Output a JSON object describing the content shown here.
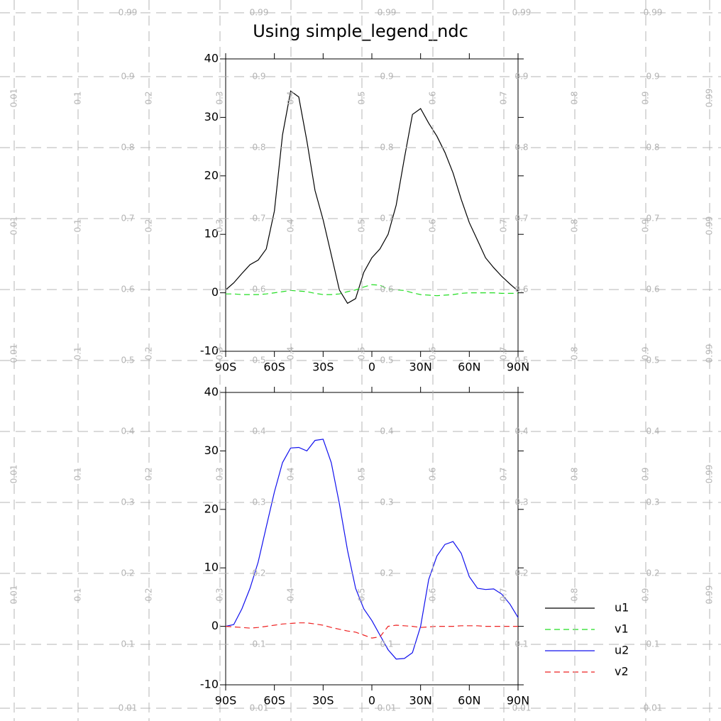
{
  "ndc_grid": {
    "ticks": [
      0.01,
      0.1,
      0.2,
      0.3,
      0.4,
      0.5,
      0.6,
      0.7,
      0.8,
      0.9,
      0.99
    ],
    "color": "#b4b4b4"
  },
  "chart_data": [
    {
      "type": "line",
      "title": "Using simple_legend_ndc",
      "x": [
        -90,
        -85,
        -80,
        -75,
        -70,
        -65,
        -60,
        -55,
        -50,
        -45,
        -40,
        -35,
        -30,
        -25,
        -20,
        -15,
        -10,
        -5,
        0,
        5,
        10,
        15,
        20,
        25,
        30,
        35,
        40,
        45,
        50,
        55,
        60,
        65,
        70,
        75,
        80,
        85,
        90
      ],
      "xlim": [
        -90,
        90
      ],
      "xticks": [
        {
          "value": -90,
          "label": "90S"
        },
        {
          "value": -60,
          "label": "60S"
        },
        {
          "value": -30,
          "label": "30S"
        },
        0,
        {
          "value": 30,
          "label": "30N"
        },
        {
          "value": 60,
          "label": "60N"
        },
        {
          "value": 90,
          "label": "90N"
        }
      ],
      "ylim": [
        -10,
        40
      ],
      "yticks": [
        -10,
        0,
        10,
        20,
        30,
        40
      ],
      "series": [
        {
          "name": "u1",
          "color": "#000000",
          "dash": false,
          "values": [
            0.5,
            1.7,
            3.3,
            4.8,
            5.6,
            7.5,
            14,
            27,
            34.5,
            33.5,
            26,
            17.5,
            12.5,
            6.5,
            0.5,
            -1.8,
            -1,
            3.5,
            6,
            7.5,
            10,
            15,
            23,
            30.5,
            31.5,
            29,
            26.8,
            24,
            20.5,
            16,
            12,
            9,
            6,
            4.3,
            2.8,
            1.5,
            0.3
          ]
        },
        {
          "name": "v1",
          "color": "#22dd22",
          "dash": true,
          "values": [
            -0.2,
            -0.2,
            -0.3,
            -0.3,
            -0.3,
            -0.2,
            0,
            0.2,
            0.4,
            0.3,
            0.2,
            -0.1,
            -0.3,
            -0.3,
            -0.2,
            0.2,
            0.5,
            1,
            1.4,
            1.3,
            0.6,
            0.5,
            0.4,
            0,
            -0.3,
            -0.4,
            -0.5,
            -0.4,
            -0.3,
            -0.1,
            0,
            0,
            0,
            0,
            -0.1,
            -0.1,
            -0.1
          ]
        }
      ]
    },
    {
      "type": "line",
      "x": [
        -90,
        -85,
        -80,
        -75,
        -70,
        -65,
        -60,
        -55,
        -50,
        -45,
        -40,
        -35,
        -30,
        -25,
        -20,
        -15,
        -10,
        -5,
        0,
        5,
        10,
        15,
        20,
        25,
        30,
        35,
        40,
        45,
        50,
        55,
        60,
        65,
        70,
        75,
        80,
        85,
        90
      ],
      "xlim": [
        -90,
        90
      ],
      "xticks": [
        {
          "value": -90,
          "label": "90S"
        },
        {
          "value": -60,
          "label": "60S"
        },
        {
          "value": -30,
          "label": "30S"
        },
        0,
        {
          "value": 30,
          "label": "30N"
        },
        {
          "value": 60,
          "label": "60N"
        },
        {
          "value": 90,
          "label": "90N"
        }
      ],
      "ylim": [
        -10,
        40
      ],
      "yticks": [
        -10,
        0,
        10,
        20,
        30,
        40
      ],
      "series": [
        {
          "name": "u2",
          "color": "#1010ee",
          "dash": false,
          "values": [
            0,
            0.3,
            3,
            6.5,
            11,
            17,
            23,
            28,
            30.5,
            30.6,
            30,
            31.8,
            32,
            28,
            21,
            13,
            6.5,
            3,
            1,
            -1.5,
            -4,
            -5.6,
            -5.5,
            -4.5,
            0,
            8,
            12,
            14,
            14.5,
            12.5,
            8.5,
            6.5,
            6.3,
            6.4,
            5.5,
            3.8,
            1.5
          ]
        },
        {
          "name": "v2",
          "color": "#ee2222",
          "dash": true,
          "values": [
            0,
            -0.1,
            -0.2,
            -0.3,
            -0.2,
            0,
            0.2,
            0.4,
            0.5,
            0.6,
            0.6,
            0.4,
            0.2,
            -0.2,
            -0.5,
            -0.8,
            -1,
            -1.5,
            -2,
            -1.8,
            0,
            0.2,
            0.1,
            0,
            -0.2,
            -0.1,
            0,
            0,
            0,
            0.1,
            0.1,
            0.1,
            0,
            0,
            0,
            0,
            0
          ]
        }
      ]
    }
  ]
}
